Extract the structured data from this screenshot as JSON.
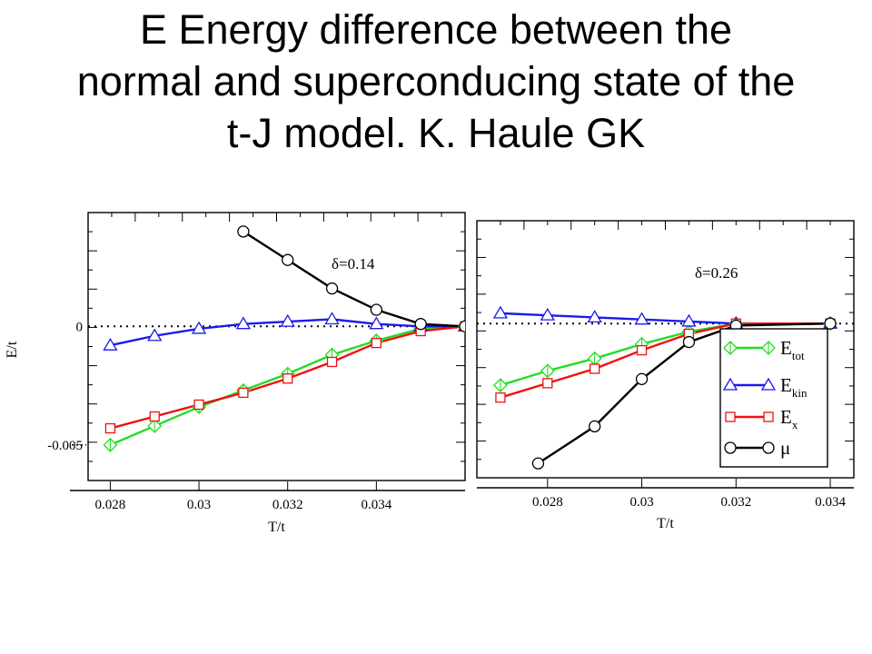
{
  "slide": {
    "title_lines": [
      "E Energy difference  between the",
      "normal and superconducing state of the",
      "t-J model.  K. Haule GK"
    ]
  },
  "chart_data": [
    {
      "type": "line",
      "panel": "left",
      "annotation": "δ=0.14",
      "xlabel": "T/t",
      "ylabel": "E/t",
      "xlim": [
        0.0275,
        0.036
      ],
      "ylim": [
        -0.0065,
        0.0048
      ],
      "xticks": [
        0.028,
        0.03,
        0.032,
        0.034
      ],
      "xtick_labels": [
        "0.028",
        "0.03",
        "0.032",
        "0.034"
      ],
      "yticks": [
        -0.005,
        0
      ],
      "ytick_labels": [
        "-0.005",
        "0"
      ],
      "reference_line_y": 0,
      "grid": false,
      "series": [
        {
          "key": "tot",
          "color": "#22dd22",
          "marker": "diamond",
          "x": [
            0.028,
            0.029,
            0.03,
            0.031,
            0.032,
            0.033,
            0.034,
            0.035,
            0.036
          ],
          "y": [
            -0.005,
            -0.0042,
            -0.0034,
            -0.0027,
            -0.002,
            -0.0012,
            -0.0006,
            -0.0001,
            0.0
          ]
        },
        {
          "key": "kin",
          "color": "#1a1aee",
          "marker": "triangle",
          "x": [
            0.028,
            0.029,
            0.03,
            0.031,
            0.032,
            0.033,
            0.034,
            0.035,
            0.036
          ],
          "y": [
            -0.0008,
            -0.0004,
            -0.0001,
            0.0001,
            0.0002,
            0.0003,
            0.0001,
            0.0,
            0.0
          ]
        },
        {
          "key": "x",
          "color": "#ee1111",
          "marker": "square",
          "x": [
            0.028,
            0.029,
            0.03,
            0.031,
            0.032,
            0.033,
            0.034,
            0.035,
            0.036
          ],
          "y": [
            -0.0043,
            -0.0038,
            -0.0033,
            -0.0028,
            -0.0022,
            -0.0015,
            -0.0007,
            -0.0002,
            0.0
          ]
        },
        {
          "key": "mu",
          "color": "#000000",
          "marker": "circle",
          "x": [
            0.031,
            0.032,
            0.033,
            0.034,
            0.035,
            0.036
          ],
          "y": [
            0.004,
            0.0028,
            0.0016,
            0.0007,
            0.0001,
            0.0
          ]
        }
      ]
    },
    {
      "type": "line",
      "panel": "right",
      "annotation": "δ=0.26",
      "xlabel": "T/t",
      "ylabel": "",
      "xlim": [
        0.0265,
        0.0345
      ],
      "ylim": [
        -0.0075,
        0.005
      ],
      "xticks": [
        0.028,
        0.03,
        0.032,
        0.034
      ],
      "xtick_labels": [
        "0.028",
        "0.03",
        "0.032",
        "0.034"
      ],
      "reference_line_y": 0,
      "grid": false,
      "legend_position": "right",
      "series": [
        {
          "key": "tot",
          "color": "#22dd22",
          "marker": "diamond",
          "legend": "E",
          "legend_sub": "tot",
          "x": [
            0.027,
            0.028,
            0.029,
            0.03,
            0.031,
            0.032,
            0.034
          ],
          "y": [
            -0.003,
            -0.0023,
            -0.0017,
            -0.001,
            -0.0004,
            0.0,
            0.0
          ]
        },
        {
          "key": "kin",
          "color": "#1a1aee",
          "marker": "triangle",
          "legend": "E",
          "legend_sub": "kin",
          "x": [
            0.027,
            0.028,
            0.029,
            0.03,
            0.031,
            0.032,
            0.034
          ],
          "y": [
            0.0005,
            0.0004,
            0.0003,
            0.0002,
            0.0001,
            0.0,
            0.0
          ]
        },
        {
          "key": "x",
          "color": "#ee1111",
          "marker": "square",
          "legend": "E",
          "legend_sub": "x",
          "x": [
            0.027,
            0.028,
            0.029,
            0.03,
            0.031,
            0.032,
            0.034
          ],
          "y": [
            -0.0036,
            -0.0029,
            -0.0022,
            -0.0013,
            -0.0005,
            0.0,
            0.0
          ]
        },
        {
          "key": "mu",
          "color": "#000000",
          "marker": "circle",
          "legend": "μ",
          "legend_sub": "",
          "x": [
            0.0278,
            0.029,
            0.03,
            0.031,
            0.032,
            0.034
          ],
          "y": [
            -0.0068,
            -0.005,
            -0.0027,
            -0.0009,
            -0.0001,
            0.0
          ]
        }
      ]
    }
  ]
}
